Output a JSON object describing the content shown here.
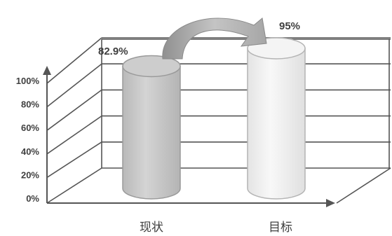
{
  "chart_data": {
    "type": "bar",
    "categories": [
      "现状",
      "目标"
    ],
    "values": [
      82.9,
      95
    ],
    "value_labels": [
      "82.9%",
      "95%"
    ],
    "y_ticks": [
      "0%",
      "20%",
      "40%",
      "60%",
      "80%",
      "100%"
    ],
    "ylim": [
      0,
      100
    ],
    "grid": true,
    "title": "",
    "xlabel": "",
    "ylabel": "",
    "colors": {
      "bar_current": "#c8c8c8",
      "bar_target": "#f0f0f0",
      "axis": "#555555",
      "grid": "#555555"
    }
  }
}
